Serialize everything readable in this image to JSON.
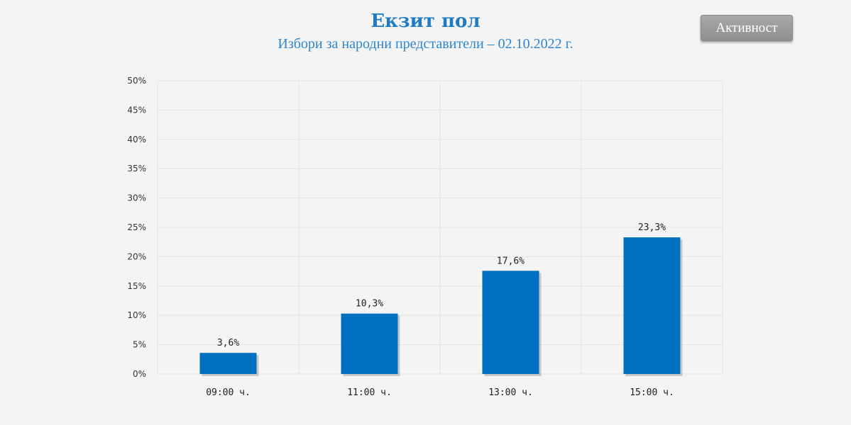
{
  "header": {
    "title": "Екзит пол",
    "subtitle": "Избори за народни представители – 02.10.2022 г.",
    "activity_button_label": "Активност"
  },
  "colors": {
    "bar": "#0070c0",
    "title": "#1e7ac2",
    "subtitle": "#2f86cc",
    "grid": "#e4e4e4"
  },
  "chart_data": {
    "type": "bar",
    "categories": [
      "09:00 ч.",
      "11:00 ч.",
      "13:00 ч.",
      "15:00 ч."
    ],
    "values": [
      3.6,
      10.3,
      17.6,
      23.3
    ],
    "value_labels": [
      "3,6%",
      "10,3%",
      "17,6%",
      "23,3%"
    ],
    "ylim": [
      0,
      50
    ],
    "yticks": [
      0,
      5,
      10,
      15,
      20,
      25,
      30,
      35,
      40,
      45,
      50
    ],
    "ytick_labels": [
      "0%",
      "5%",
      "10%",
      "15%",
      "20%",
      "25%",
      "30%",
      "35%",
      "40%",
      "45%",
      "50%"
    ],
    "grid": true,
    "legend": "none"
  }
}
